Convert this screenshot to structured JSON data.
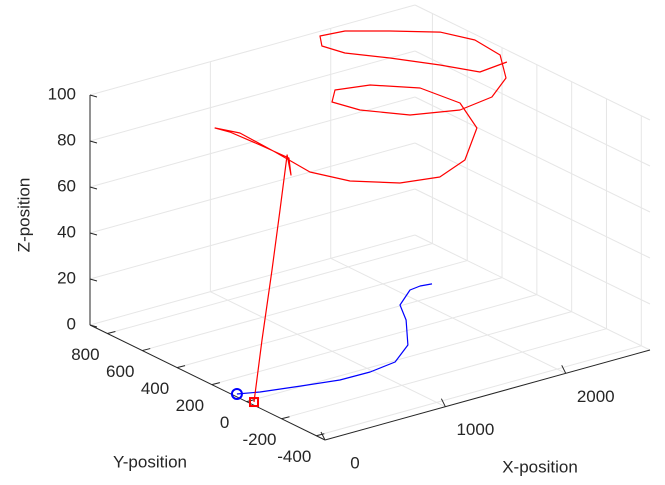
{
  "chart_data": {
    "type": "line3d",
    "xlabel": "X-position",
    "ylabel": "Y-position",
    "zlabel": "Z-position",
    "xlim": [
      0,
      2700
    ],
    "ylim": [
      -450,
      900
    ],
    "zlim": [
      0,
      100
    ],
    "xticks": [
      0,
      1000,
      2000
    ],
    "yticks": [
      -400,
      -200,
      0,
      200,
      400,
      600,
      800
    ],
    "zticks": [
      0,
      20,
      40,
      60,
      80,
      100
    ],
    "grid": true,
    "series": [
      {
        "color": "#0000ff",
        "marker": "circle",
        "x": [
          32,
          176,
          453,
          730,
          976,
          1217,
          1470,
          1731,
          1861,
          2077,
          2174,
          2260
        ],
        "y": [
          78,
          45,
          6,
          -31,
          -34,
          -11,
          90,
          281,
          406,
          498,
          507,
          498
        ],
        "z": [
          0,
          0,
          0,
          0,
          0,
          0,
          0,
          0,
          0,
          0,
          0,
          0
        ]
      },
      {
        "color": "#ff0000",
        "marker": "square",
        "x": [
          35,
          301,
          614,
          883,
          1143,
          947,
          1096,
          1058,
          1015,
          954,
          1007,
          962,
          906,
          996,
          1214,
          1466,
          1758,
          2144,
          2300,
          2226,
          1968,
          1703,
          1532,
          1569,
          1755,
          2050,
          2335,
          2591,
          2684,
          2689,
          2577,
          2310,
          2059,
          1860,
          1762,
          1808,
          1993,
          2182,
          2318,
          2570
        ],
        "y": [
          -18,
          120,
          279,
          419,
          558,
          400,
          515,
          655,
          798,
          841,
          735,
          502,
          263,
          95,
          -41,
          -96,
          -38,
          160,
          365,
          543,
          652,
          670,
          569,
          434,
          275,
          192,
          206,
          302,
          400,
          548,
          671,
          774,
          859,
          865,
          786,
          686,
          555,
          398,
          263,
          282
        ],
        "z": [
          0,
          18,
          38,
          55,
          70,
          70,
          71,
          72,
          73,
          74,
          75,
          76,
          77,
          78,
          79,
          80,
          81,
          82,
          83,
          84,
          85,
          86,
          87,
          88,
          89,
          90,
          91,
          92,
          97,
          98,
          98.5,
          99,
          99.5,
          100,
          100,
          100,
          100,
          100,
          100,
          100
        ]
      }
    ]
  }
}
